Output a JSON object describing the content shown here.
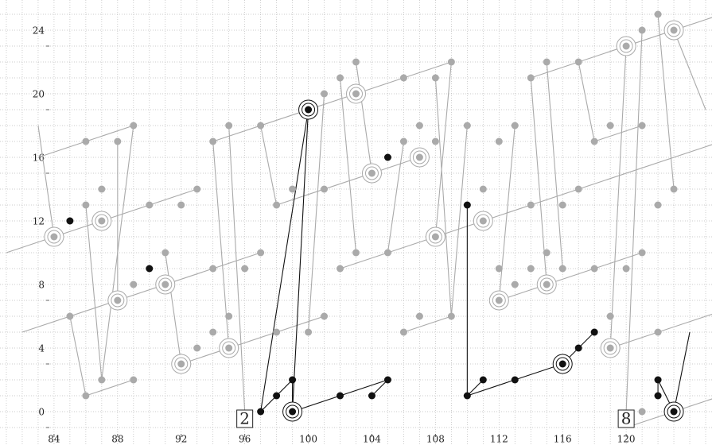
{
  "chart_data": {
    "type": "scatter",
    "xlim": [
      80.6,
      125.4
    ],
    "ylim": [
      -1.1,
      26.9
    ],
    "xticks": [
      84,
      88,
      92,
      96,
      100,
      104,
      108,
      112,
      116,
      120
    ],
    "yticks": [
      0,
      4,
      8,
      12,
      16,
      20,
      24
    ],
    "xminor": [
      81,
      82,
      83,
      84,
      85,
      86,
      87,
      88,
      89,
      90,
      91,
      92,
      93,
      94,
      95,
      96,
      97,
      98,
      99,
      100,
      101,
      102,
      103,
      104,
      105,
      106,
      107,
      108,
      109,
      110,
      111,
      112,
      113,
      114,
      115,
      116,
      117,
      118,
      119,
      120,
      121,
      122,
      123,
      124,
      125
    ],
    "yminor": [
      0,
      1,
      2,
      3,
      4,
      5,
      6,
      7,
      8,
      9,
      10,
      11,
      12,
      13,
      14,
      15,
      16,
      17,
      18,
      19,
      20,
      21,
      22,
      23,
      24,
      25,
      26
    ],
    "grid": "dotted",
    "segments": [
      {
        "name": "gray-lines",
        "color": "#aaaaaa",
        "lines": [
          [
            81,
            11,
            93,
            15
          ],
          [
            83,
            17,
            89,
            19
          ],
          [
            94,
            18,
            109,
            23
          ],
          [
            98,
            14,
            107,
            17
          ],
          [
            114,
            22,
            126,
            26
          ],
          [
            118,
            18,
            121,
            19
          ],
          [
            82,
            6,
            97,
            11
          ],
          [
            86,
            2,
            89,
            3
          ],
          [
            92,
            4,
            101,
            7
          ],
          [
            102,
            10,
            126,
            18
          ],
          [
            106,
            6,
            109,
            7
          ],
          [
            112,
            8,
            121,
            11
          ],
          [
            119,
            5,
            126,
            7.33
          ],
          [
            120,
            0,
            126,
            2
          ],
          [
            84,
            12,
            83,
            19
          ],
          [
            86,
            2,
            85,
            7
          ],
          [
            88,
            18,
            88,
            8
          ],
          [
            89,
            19,
            87,
            3
          ],
          [
            94,
            18,
            95,
            5
          ],
          [
            95,
            19,
            96,
            1
          ],
          [
            101,
            21,
            100,
            6
          ],
          [
            102,
            22,
            103,
            11
          ],
          [
            103,
            23,
            104,
            16
          ],
          [
            108,
            22,
            109,
            7
          ],
          [
            109,
            23,
            108,
            12
          ],
          [
            113,
            19,
            112,
            8
          ],
          [
            114,
            22,
            115,
            9
          ],
          [
            115,
            23,
            116,
            10
          ],
          [
            120,
            24,
            119,
            5
          ],
          [
            121,
            25,
            120,
            1
          ],
          [
            122,
            26,
            123,
            15
          ],
          [
            123,
            25,
            125,
            20
          ],
          [
            98,
            14,
            97,
            19
          ],
          [
            86,
            14,
            87,
            3
          ],
          [
            91,
            11,
            92,
            4
          ],
          [
            106,
            18,
            105,
            11
          ],
          [
            110,
            19,
            109,
            7
          ],
          [
            118,
            18,
            117,
            23
          ]
        ]
      },
      {
        "name": "black-lines",
        "color": "#111111",
        "lines": [
          [
            97,
            1,
            100,
            20
          ],
          [
            99,
            1,
            100,
            20
          ],
          [
            97,
            1,
            99,
            3
          ],
          [
            99,
            3,
            99,
            1
          ],
          [
            99,
            1,
            105,
            3
          ],
          [
            104,
            2,
            105,
            3
          ],
          [
            110,
            14,
            110,
            2
          ],
          [
            110,
            2,
            116,
            4
          ],
          [
            110,
            2,
            111,
            3
          ],
          [
            116,
            4,
            118,
            6
          ],
          [
            122,
            2,
            122,
            3
          ],
          [
            123,
            1,
            122,
            3
          ],
          [
            123,
            1,
            124,
            6
          ]
        ]
      }
    ],
    "series": [
      {
        "name": "gray-points",
        "color": "#aaaaaa",
        "x": [
          86,
          89,
          88,
          86,
          87,
          90,
          93,
          92,
          94,
          95,
          97,
          98,
          99,
          101,
          101,
          102,
          103,
          106,
          108,
          109,
          106,
          107,
          108,
          110,
          112,
          113,
          111,
          114,
          116,
          117,
          114,
          115,
          117,
          118,
          119,
          121,
          122,
          123,
          121,
          122,
          85,
          86,
          87,
          89,
          89,
          91,
          93,
          94,
          94,
          95,
          96,
          97,
          98,
          101,
          100,
          102,
          103,
          105,
          106,
          107,
          109,
          112,
          113,
          114,
          115,
          116,
          118,
          120,
          121,
          118,
          119,
          121,
          122
        ],
        "values": [
          18,
          19,
          18,
          14,
          15,
          14,
          15,
          14,
          18,
          19,
          19,
          14,
          15,
          15,
          21,
          22,
          23,
          22,
          22,
          23,
          18,
          19,
          18,
          19,
          18,
          19,
          15,
          14,
          14,
          15,
          22,
          23,
          23,
          18,
          19,
          19,
          14,
          15,
          25,
          26,
          7,
          2,
          3,
          9,
          3,
          11,
          5,
          6,
          10,
          7,
          10,
          11,
          6,
          7,
          6,
          10,
          11,
          11,
          6,
          7,
          7,
          10,
          9,
          10,
          11,
          10,
          10,
          10,
          11,
          6,
          7,
          1,
          6
        ]
      },
      {
        "name": "black-points",
        "color": "#111111",
        "x": [
          85,
          90,
          97,
          98,
          99,
          99,
          100,
          102,
          104,
          105,
          105,
          110,
          110,
          111,
          113,
          116,
          117,
          118,
          122,
          122,
          123
        ],
        "values": [
          13,
          10,
          1,
          2,
          3,
          1,
          20,
          2,
          2,
          3,
          17,
          14,
          2,
          3,
          3,
          4,
          5,
          6,
          2,
          3,
          1
        ]
      },
      {
        "name": "gray-circles",
        "color": "#aaaaaa",
        "x": [
          84,
          87,
          88,
          91,
          92,
          95,
          104,
          107,
          103,
          108,
          111,
          112,
          115,
          119,
          120,
          123
        ],
        "values": [
          12,
          13,
          8,
          9,
          4,
          5,
          16,
          17,
          21,
          12,
          13,
          8,
          9,
          5,
          24,
          25
        ]
      },
      {
        "name": "black-circles",
        "color": "#111111",
        "x": [
          99,
          100,
          116,
          123
        ],
        "values": [
          1,
          20,
          4,
          1
        ]
      }
    ],
    "boxes": [
      {
        "label": "2",
        "x": 96,
        "y": 0.5
      },
      {
        "label": "8",
        "x": 120,
        "y": 0.5
      }
    ]
  }
}
